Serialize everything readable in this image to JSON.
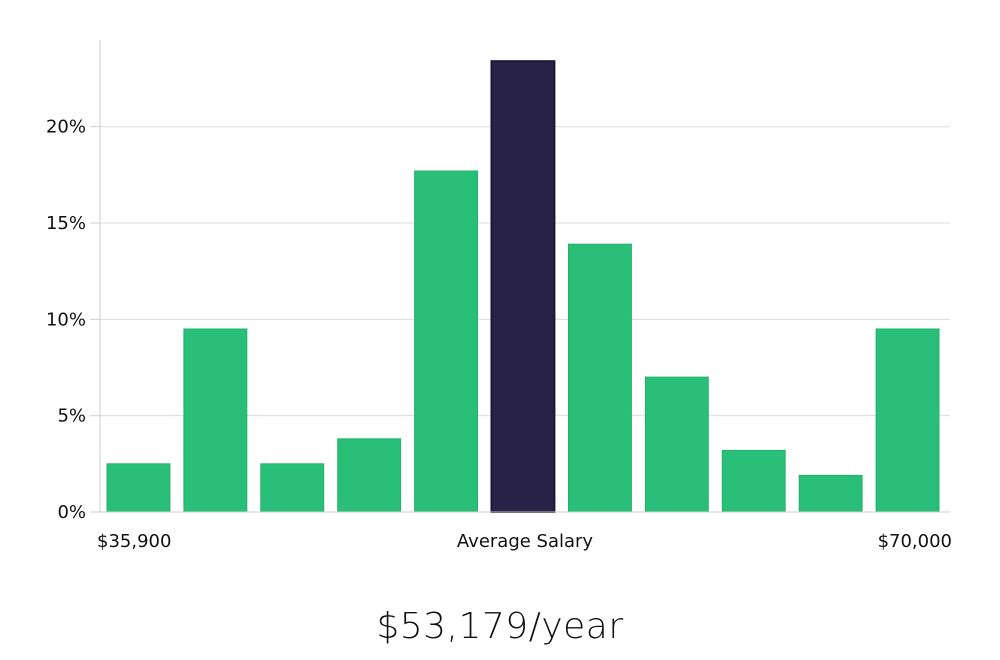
{
  "chart_data": {
    "type": "bar",
    "title": "",
    "xlabel": "Average Salary",
    "ylabel": "",
    "x_min_label": "$35,900",
    "x_max_label": "$70,000",
    "ylim": [
      0,
      24.5
    ],
    "y_ticks": [
      0,
      5,
      10,
      15,
      20
    ],
    "y_tick_labels": [
      "0%",
      "5%",
      "10%",
      "15%",
      "20%"
    ],
    "values": [
      2.5,
      9.5,
      2.5,
      3.8,
      17.7,
      23.4,
      13.9,
      7.0,
      3.2,
      1.9,
      9.5
    ],
    "highlight_index": 5,
    "bar_color": "#2abf78",
    "bar_edge_color": "#22b36c",
    "highlight_color": "#292447",
    "highlight_edge_color": "#1a1633",
    "grid": true,
    "grid_color": "#dcdcdc",
    "axis_color": "#cfcfcf"
  },
  "headline": {
    "salary": "$53,179/year"
  }
}
